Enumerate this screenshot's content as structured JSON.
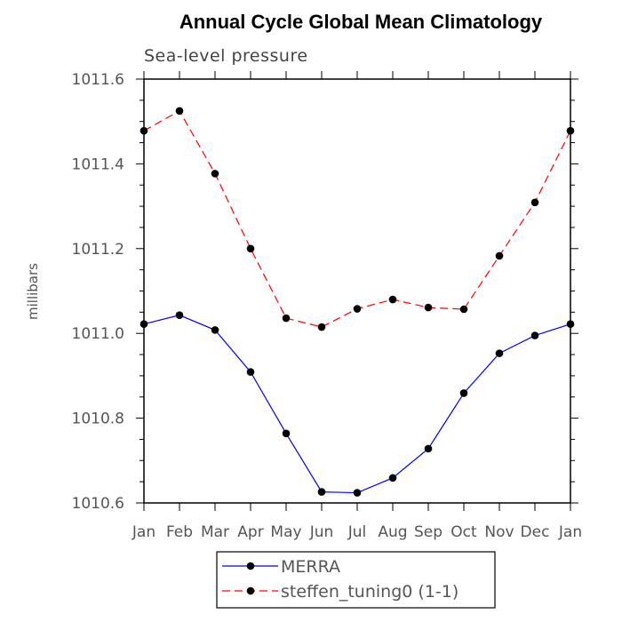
{
  "chart_data": {
    "type": "line",
    "title": "Annual Cycle Global Mean Climatology",
    "subtitle": "Sea-level pressure",
    "xlabel": "",
    "ylabel": "millibars",
    "categories": [
      "Jan",
      "Feb",
      "Mar",
      "Apr",
      "May",
      "Jun",
      "Jul",
      "Aug",
      "Sep",
      "Oct",
      "Nov",
      "Dec",
      "Jan"
    ],
    "ylim": [
      1010.6,
      1011.6
    ],
    "yticks": [
      1010.6,
      1010.8,
      1011.0,
      1011.2,
      1011.4,
      1011.6
    ],
    "ytick_labels": [
      "1010.6",
      "1010.8",
      "1011.0",
      "1011.2",
      "1011.4",
      "1011.6"
    ],
    "grid": false,
    "legend_position": "bottom-center",
    "series": [
      {
        "name": "MERRA",
        "color": "#0000ff",
        "dash": "solid",
        "values": [
          1011.022,
          1011.043,
          1011.008,
          1010.909,
          1010.764,
          1010.626,
          1010.624,
          1010.659,
          1010.728,
          1010.859,
          1010.953,
          1010.995,
          1011.022
        ]
      },
      {
        "name": "steffen_tuning0 (1-1)",
        "color": "#ff0000",
        "dash": "dashed",
        "values": [
          1011.478,
          1011.525,
          1011.377,
          1011.2,
          1011.036,
          1011.015,
          1011.058,
          1011.08,
          1011.061,
          1011.057,
          1011.183,
          1011.309,
          1011.478
        ]
      }
    ]
  }
}
